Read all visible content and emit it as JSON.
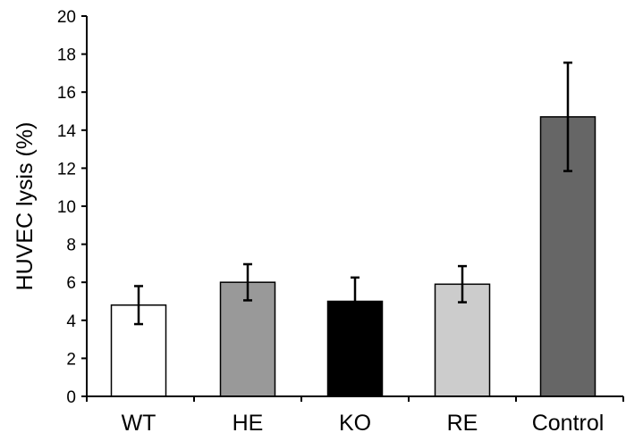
{
  "chart_data": {
    "type": "bar",
    "title": "",
    "xlabel": "",
    "ylabel": "HUVEC lysis (%)",
    "ylim": [
      0,
      20
    ],
    "yticks": [
      "0",
      "2",
      "4",
      "6",
      "8",
      "10",
      "12",
      "14",
      "16",
      "18",
      "20"
    ],
    "categories": [
      "WT",
      "HE",
      "KO",
      "RE",
      "Control"
    ],
    "values": [
      4.8,
      6.0,
      5.0,
      5.9,
      14.7
    ],
    "errors": [
      1.0,
      0.95,
      1.25,
      0.95,
      2.85
    ],
    "colors": [
      "#ffffff",
      "#999999",
      "#000000",
      "#cccccc",
      "#666666"
    ],
    "grid": false,
    "legend": "none"
  }
}
